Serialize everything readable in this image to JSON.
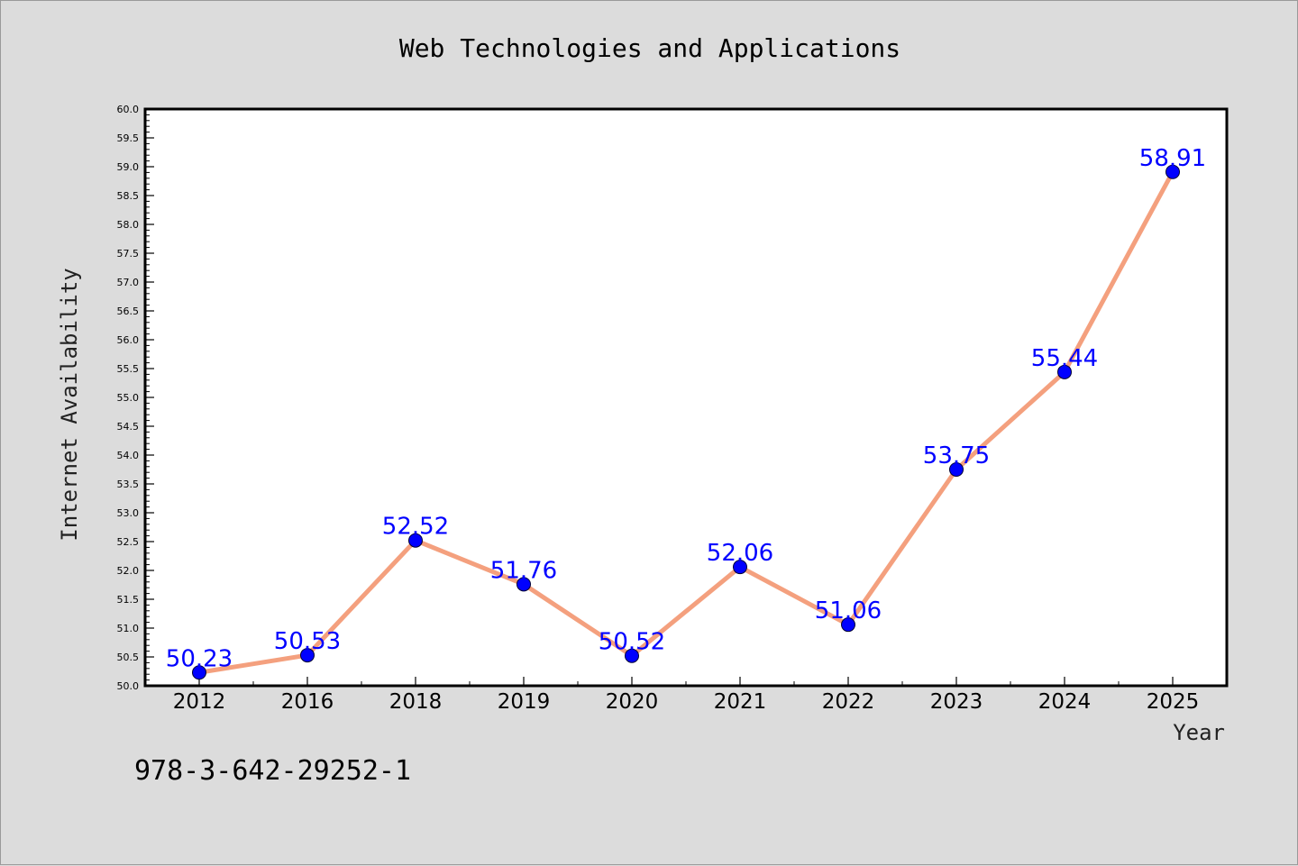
{
  "footer_text": "978-3-642-29252-1",
  "colors": {
    "line": "#f4a07e",
    "marker": "#0000ff",
    "data_label": "#0000ff",
    "background": "#dcdcdc",
    "plot_area": "#ffffff"
  },
  "chart_data": {
    "type": "line",
    "title": "Web Technologies and Applications",
    "xlabel": "Year",
    "ylabel": "Internet Availability",
    "categories": [
      "2012",
      "2016",
      "2018",
      "2019",
      "2020",
      "2021",
      "2022",
      "2023",
      "2024",
      "2025"
    ],
    "values": [
      50.23,
      50.53,
      52.52,
      51.76,
      50.52,
      52.06,
      51.06,
      53.75,
      55.44,
      58.91
    ],
    "data_labels": [
      "50.23",
      "50.53",
      "52.52",
      "51.76",
      "50.52",
      "52.06",
      "51.06",
      "53.75",
      "55.44",
      "58.91"
    ],
    "ylim": [
      50.0,
      60.0
    ],
    "yticks": [
      "50.0",
      "50.5",
      "51.0",
      "51.5",
      "52.0",
      "52.5",
      "53.0",
      "53.5",
      "54.0",
      "54.5",
      "55.0",
      "55.5",
      "56.0",
      "56.5",
      "57.0",
      "57.5",
      "58.0",
      "58.5",
      "59.0",
      "59.5",
      "60.0"
    ],
    "grid": false,
    "legend": "none"
  }
}
